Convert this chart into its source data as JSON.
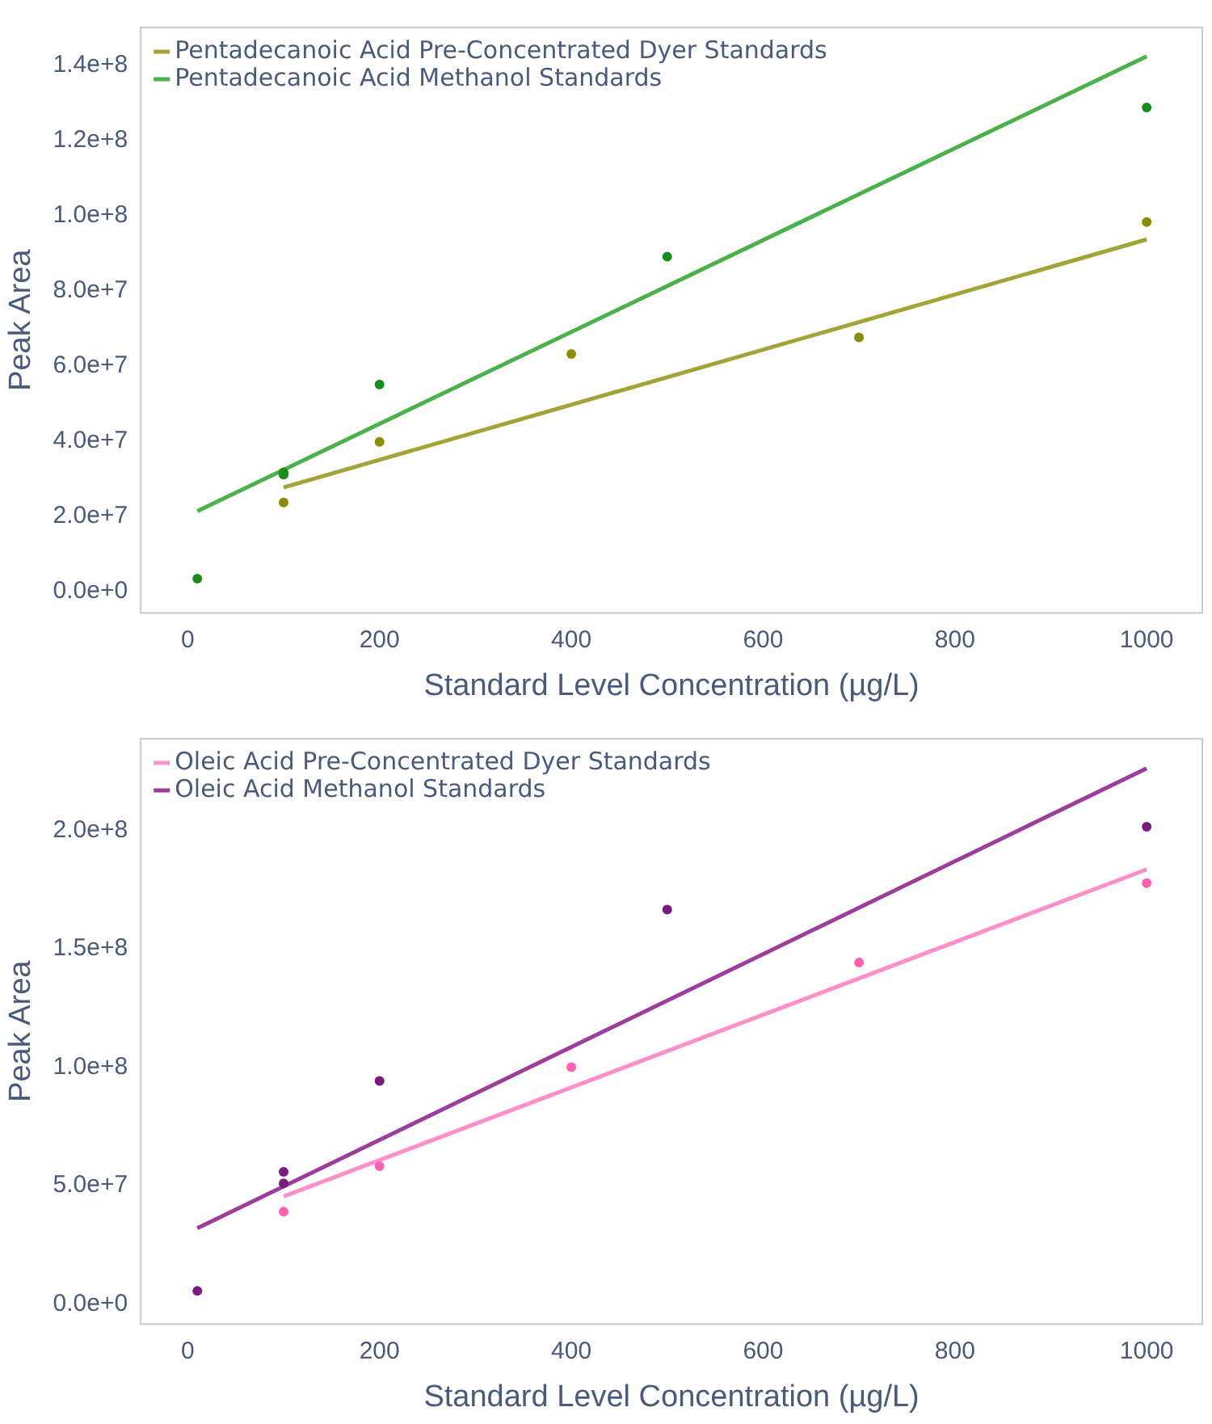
{
  "chart_data": [
    {
      "type": "scatter",
      "xlabel": "Standard Level Concentration (µg/L)",
      "ylabel": "Peak Area",
      "xlim": [
        -49,
        1058
      ],
      "ylim": [
        -5800000,
        150000000
      ],
      "xticks": [
        0,
        200,
        400,
        600,
        800,
        1000
      ],
      "yticks": [
        {
          "value": 0,
          "label": "0.0e+0"
        },
        {
          "value": 20000000,
          "label": "2.0e+7"
        },
        {
          "value": 40000000,
          "label": "4.0e+7"
        },
        {
          "value": 60000000,
          "label": "6.0e+7"
        },
        {
          "value": 80000000,
          "label": "8.0e+7"
        },
        {
          "value": 100000000,
          "label": "1.0e+8"
        },
        {
          "value": 120000000,
          "label": "1.2e+8"
        },
        {
          "value": 140000000,
          "label": "1.4e+8"
        }
      ],
      "grid": false,
      "legend": "top left",
      "series": [
        {
          "type": "scatter",
          "marker": "circle",
          "color": "#8c8c00",
          "x": [
            100,
            200,
            400,
            700,
            1000
          ],
          "values": [
            23600000,
            39700000,
            63100000,
            67500000,
            98200000
          ]
        },
        {
          "type": "scatter",
          "marker": "circle",
          "color": "#1a8c1a",
          "x": [
            10,
            100,
            100,
            200,
            500,
            1000
          ],
          "values": [
            3300000,
            31000000,
            31600000,
            55000000,
            89000000,
            128700000
          ]
        },
        {
          "type": "line",
          "marker": "none",
          "name": "Pentadecanoic Acid Pre-Concentrated Dyer Standards",
          "color": "#a3a33a",
          "x": [
            100,
            1000
          ],
          "values": [
            27600000,
            93600000
          ]
        },
        {
          "type": "line",
          "marker": "none",
          "name": "Pentadecanoic Acid Methanol Standards",
          "color": "#4cb04c",
          "x": [
            10,
            1000
          ],
          "values": [
            21300000,
            142300000
          ]
        }
      ]
    },
    {
      "type": "scatter",
      "xlabel": "Standard Level Concentration (µg/L)",
      "ylabel": "Peak Area",
      "xlim": [
        -49,
        1058
      ],
      "ylim": [
        -8500000,
        238700000
      ],
      "xticks": [
        0,
        200,
        400,
        600,
        800,
        1000
      ],
      "yticks": [
        {
          "value": 0,
          "label": "0.0e+0"
        },
        {
          "value": 50000000,
          "label": "5.0e+7"
        },
        {
          "value": 100000000,
          "label": "1.0e+8"
        },
        {
          "value": 150000000,
          "label": "1.5e+8"
        },
        {
          "value": 200000000,
          "label": "2.0e+8"
        }
      ],
      "grid": false,
      "legend": "top left",
      "series": [
        {
          "type": "scatter",
          "marker": "circle",
          "color": "#ff5fb0",
          "x": [
            100,
            200,
            400,
            700,
            1000
          ],
          "values": [
            39000000,
            58200000,
            100000000,
            144200000,
            177700000
          ]
        },
        {
          "type": "scatter",
          "marker": "circle",
          "color": "#7a1a7a",
          "x": [
            10,
            100,
            100,
            200,
            500,
            1000
          ],
          "values": [
            5500000,
            55800000,
            50900000,
            94200000,
            166500000,
            201500000
          ]
        },
        {
          "type": "line",
          "marker": "none",
          "name": "Oleic Acid Pre-Concentrated Dyer Standards",
          "color": "#ff8fc8",
          "x": [
            100,
            1000
          ],
          "values": [
            45400000,
            183500000
          ]
        },
        {
          "type": "line",
          "marker": "none",
          "name": "Oleic Acid Methanol Standards",
          "color": "#9b3d9b",
          "x": [
            10,
            1000
          ],
          "values": [
            32000000,
            226200000
          ]
        }
      ]
    }
  ]
}
